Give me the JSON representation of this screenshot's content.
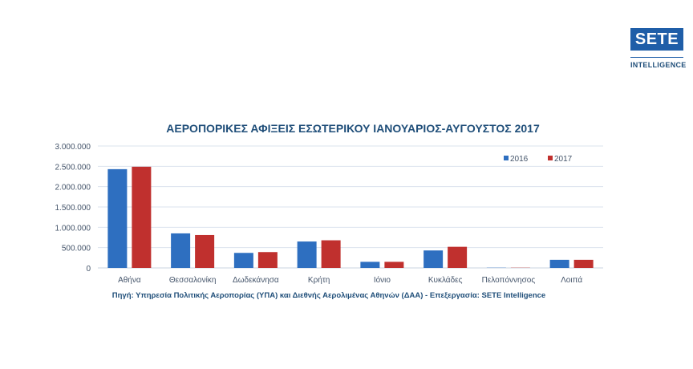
{
  "logo": {
    "name": "SETE",
    "subtitle": "INTELLIGENCE"
  },
  "chart_data": {
    "type": "bar",
    "title": "ΑΕΡΟΠΟΡΙΚΕΣ ΑΦΙΞΕΙΣ ΕΣΩΤΕΡΙΚΟΥ ΙΑΝΟΥΑΡΙΟΣ-ΑΥΓΟΥΣΤΟΣ  2017",
    "categories": [
      "Αθήνα",
      "Θεσσαλονίκη",
      "Δωδεκάνησα",
      "Κρήτη",
      "Ιόνιο",
      "Κυκλάδες",
      "Πελοπόννησος",
      "Λοιπά"
    ],
    "series": [
      {
        "name": "2016",
        "color": "#2e6fc0",
        "values": [
          2430000,
          850000,
          370000,
          650000,
          150000,
          430000,
          5000,
          200000
        ]
      },
      {
        "name": "2017",
        "color": "#c0302e",
        "values": [
          2490000,
          810000,
          390000,
          680000,
          150000,
          520000,
          5000,
          200000
        ]
      }
    ],
    "ylim": [
      0,
      3000000
    ],
    "yticks": [
      0,
      500000,
      1000000,
      1500000,
      2000000,
      2500000,
      3000000
    ],
    "ytick_labels": [
      "0",
      "500.000",
      "1.000.000",
      "1.500.000",
      "2.000.000",
      "2.500.000",
      "3.000.000"
    ],
    "grid": true,
    "legend": "top-right",
    "xlabel": "",
    "ylabel": "",
    "source": "Πηγή: Υπηρεσία Πολιτικής Αεροπορίας (ΥΠΑ)  και Διεθνής  Αερολιμένας Αθηνών (ΔΑΑ) - Επεξεργασία: SETE Intelligence"
  }
}
